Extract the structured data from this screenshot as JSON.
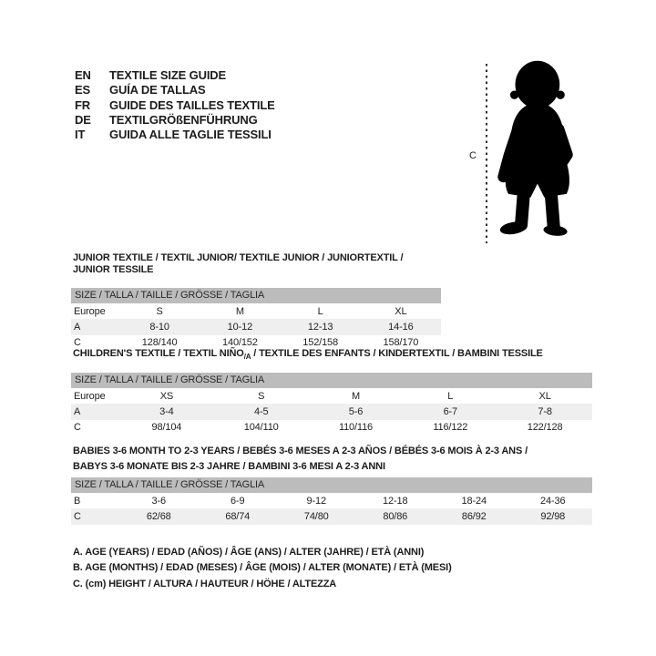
{
  "page": {
    "background": "#ffffff"
  },
  "languages": [
    {
      "code": "EN",
      "label": "TEXTILE SIZE GUIDE"
    },
    {
      "code": "ES",
      "label": "GUÍA DE TALLAS"
    },
    {
      "code": "FR",
      "label": "GUIDE DES TAILLES TEXTILE"
    },
    {
      "code": "DE",
      "label": "TEXTILGRÖßENFÜHRUNG"
    },
    {
      "code": "IT",
      "label": "GUIDA ALLE TAGLIE TESSILI"
    }
  ],
  "figure": {
    "icon": "toddler-silhouette",
    "measure_label": "C",
    "silhouette_color": "#000000"
  },
  "colors": {
    "header_bar": "#bcbcbc",
    "row_stripe": "#efefef",
    "text": "#1c1c1c"
  },
  "tables": [
    {
      "title": "JUNIOR TEXTILE / TEXTIL JUNIOR/ TEXTILE JUNIOR / JUNIORTEXTIL / JUNIOR TESSILE",
      "size_header": "SIZE / TALLA / TAILLE / GRÖSSE / TAGLIA",
      "rows": [
        {
          "label": "Europe",
          "values": [
            "S",
            "M",
            "L",
            "XL"
          ]
        },
        {
          "label": "A",
          "values": [
            "8-10",
            "10-12",
            "12-13",
            "14-16"
          ]
        },
        {
          "label": "C",
          "values": [
            "128/140",
            "140/152",
            "152/158",
            "158/170"
          ]
        }
      ]
    },
    {
      "title_pre": "CHILDREN'S TEXTILE / TEXTIL NIÑO",
      "title_sub": "/A",
      "title_post": " / TEXTILE DES ENFANTS / KINDERTEXTIL / BAMBINI TESSILE",
      "size_header": "SIZE / TALLA / TAILLE / GRÖSSE / TAGLIA",
      "rows": [
        {
          "label": "Europe",
          "values": [
            "XS",
            "S",
            "M",
            "L",
            "XL"
          ]
        },
        {
          "label": "A",
          "values": [
            "3-4",
            "4-5",
            "5-6",
            "6-7",
            "7-8"
          ]
        },
        {
          "label": "C",
          "values": [
            "98/104",
            "104/110",
            "110/116",
            "116/122",
            "122/128"
          ]
        }
      ]
    },
    {
      "title_lines": [
        "BABIES 3-6 MONTH TO 2-3 YEARS / BEBÉS 3-6 MESES A 2-3 AÑOS / BÉBÉS 3-6 MOIS À 2-3 ANS /",
        "BABYS 3-6 MONATE BIS 2-3 JAHRE / BAMBINI 3-6 MESI A 2-3 ANNI"
      ],
      "size_header": "SIZE / TALLA / TAILLE / GRÖSSE / TAGLIA",
      "rows": [
        {
          "label": "B",
          "values": [
            "3-6",
            "6-9",
            "9-12",
            "12-18",
            "18-24",
            "24-36"
          ]
        },
        {
          "label": "C",
          "values": [
            "62/68",
            "68/74",
            "74/80",
            "80/86",
            "86/92",
            "92/98"
          ]
        }
      ]
    }
  ],
  "notes": [
    "A. AGE (YEARS) / EDAD (AÑOS) / ÂGE (ANS) / ALTER (JAHRE) / ETÀ (ANNI)",
    "B. AGE (MONTHS) / EDAD (MESES) / ÂGE (MOIS) / ALTER (MONATE) / ETÀ (MESI)",
    "C. (cm) HEIGHT / ALTURA / HAUTEUR / HÖHE / ALTEZZA"
  ]
}
